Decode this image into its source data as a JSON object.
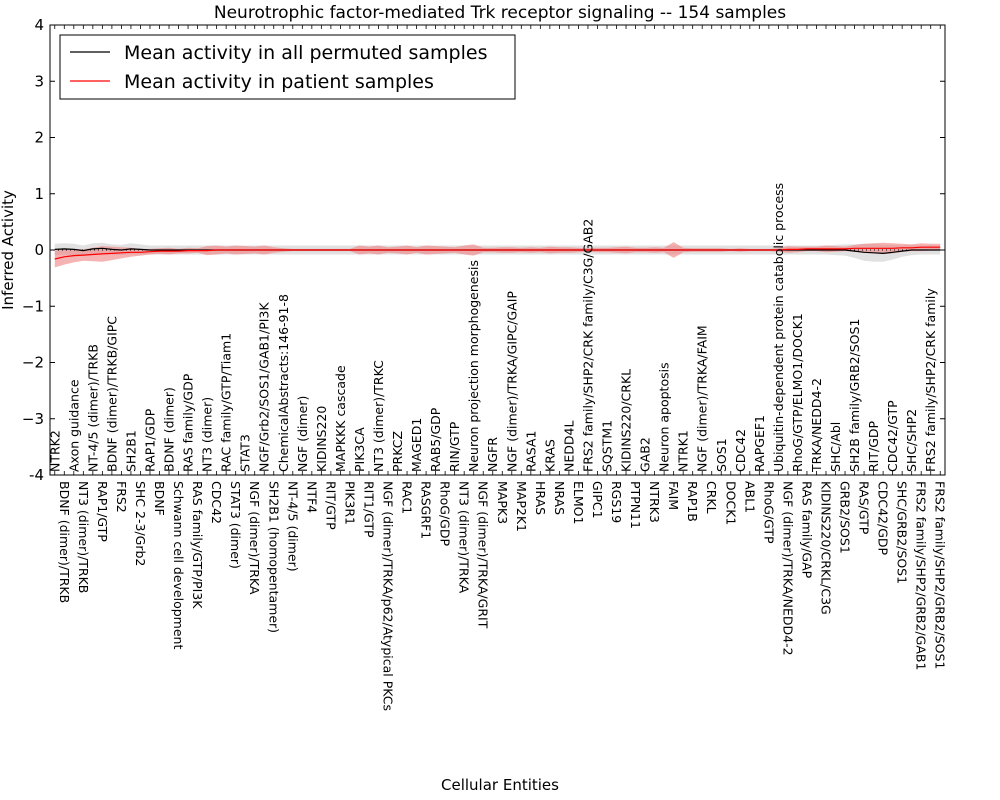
{
  "chart_data": {
    "type": "line",
    "title": "Neurotrophic factor-mediated Trk receptor signaling -- 154 samples",
    "xlabel": "Cellular Entities",
    "ylabel": "Inferred Activity",
    "ylim": [
      -4,
      4
    ],
    "yticks": [
      "-4",
      "−3",
      "−2",
      "−1",
      "0",
      "1",
      "2",
      "3",
      "4"
    ],
    "ytick_values": [
      -4,
      -3,
      -2,
      -1,
      0,
      1,
      2,
      3,
      4
    ],
    "legend_placement": "top-left",
    "grid": false,
    "categories": [
      "NTRK2",
      "BDNF (dimer)/TRKB",
      "Axon guidance",
      "NT3 (dimer)/TRKB",
      "NT-4/5 (dimer)/TRKB",
      "RAP1/GTP",
      "BDNF (dimer)/TRKB/GIPC",
      "FRS2",
      "SH2B1",
      "SHC 2-3/Grb2",
      "RAP1/GDP",
      "BDNF",
      "BDNF (dimer)",
      "Schwann cell development",
      "RAS family/GDP",
      "RAS family/GTP/PI3K",
      "NT3 (dimer)",
      "CDC42",
      "RAC family/GTP/Tiam1",
      "STAT3 (dimer)",
      "STAT3",
      "NGF (dimer)/TRKA",
      "NGF/Grb2/SOS1/GAB1/PI3K",
      "SH2B1 (homopentamer)",
      "ChemicalAbstracts:146-91-8",
      "NT-4/5 (dimer)",
      "NGF (dimer)",
      "NTF4",
      "KIDINS220",
      "RIT/GTP",
      "MAPKKK cascade",
      "PIK3R1",
      "PIK3CA",
      "RIT1/GTP",
      "NT3 (dimer)/TRKC",
      "NGF (dimer)/TRKA/p62/Atypical PKCs",
      "PRKCZ",
      "RAC1",
      "MAGED1",
      "RASGRF1",
      "RAB5/GDP",
      "RhoG/GDP",
      "RIN/GTP",
      "NT3 (dimer)/TRKA",
      "Neuron projection morphogenesis",
      "NGF (dimer)/TRKA/GRIT",
      "NGFR",
      "MAPK3",
      "NGF (dimer)/TRKA/GIPC/GAIP",
      "MAP2K1",
      "RASA1",
      "HRAS",
      "KRAS",
      "NRAS",
      "NEDD4L",
      "ELMO1",
      "FRS2 family/SHP2/CRK family/C3G/GAB2",
      "GIPC1",
      "SQSTM1",
      "RGS19",
      "KIDINS220/CRKL",
      "PTPN11",
      "GAB2",
      "NTRK3",
      "Neuron apoptosis",
      "FAIM",
      "NTRK1",
      "RAP1B",
      "NGF (dimer)/TRKA/FAIM",
      "CRKL",
      "SOS1",
      "DOCK1",
      "CDC42",
      "ABL1",
      "RAPGEF1",
      "RhoG/GTP",
      "Ubiquitin-dependent protein catabolic process",
      "NGF (dimer)/TRKA/NEDD4-2",
      "RhoG/GTP/ELMO1/DOCK1",
      "RAS family/GAP",
      "TRKA/NEDD4-2",
      "KIDINS220/CRKL/C3G",
      "SHC/Abl",
      "GRB2/SOS1",
      "SH2B family/GRB2/SOS1",
      "RAS/GTP",
      "RIT/GDP",
      "CDC42/GDP",
      "CDC42/GTP",
      "SHC/GRB2/SOS1",
      "SHC/SHP2",
      "FRS2 family/SHP2/GRB2/GAB1",
      "FRS2 family/SHP2/CRK family",
      "FRS2 family/SHP2/GRB2/SOS1"
    ],
    "series": [
      {
        "name": "Mean activity in all permuted samples",
        "color": "#000000",
        "band_color": "#c8c8c8",
        "values": [
          0.01,
          0.02,
          0.01,
          -0.01,
          0.02,
          0.03,
          0.01,
          0,
          0.02,
          0.01,
          0,
          0,
          0,
          0,
          0,
          0,
          0,
          0,
          0,
          0,
          0,
          0,
          0,
          0,
          0,
          0,
          0,
          0,
          0,
          0,
          0,
          0,
          0,
          0,
          0,
          0,
          0,
          0,
          0,
          0,
          0,
          0,
          0,
          0,
          0,
          0,
          0,
          0,
          0,
          0,
          0,
          0,
          0,
          0,
          0,
          0,
          0,
          0,
          0,
          0,
          0,
          0,
          0,
          0,
          0,
          0,
          0,
          0,
          0,
          0,
          0,
          0,
          0,
          0,
          0,
          0,
          0,
          0,
          0,
          0,
          0,
          0,
          0,
          0,
          -0.02,
          -0.04,
          -0.05,
          -0.06,
          -0.04,
          -0.02,
          0,
          0,
          0,
          0
        ],
        "band": [
          0.1,
          0.1,
          0.1,
          0.09,
          0.1,
          0.1,
          0.09,
          0.09,
          0.1,
          0.09,
          0.08,
          0.08,
          0.08,
          0.08,
          0.08,
          0.08,
          0.08,
          0.08,
          0.08,
          0.08,
          0.08,
          0.08,
          0.08,
          0.08,
          0.08,
          0.08,
          0.08,
          0.08,
          0.08,
          0.08,
          0.08,
          0.08,
          0.08,
          0.08,
          0.08,
          0.08,
          0.08,
          0.08,
          0.08,
          0.08,
          0.08,
          0.08,
          0.08,
          0.08,
          0.08,
          0.08,
          0.08,
          0.08,
          0.08,
          0.08,
          0.08,
          0.08,
          0.08,
          0.08,
          0.08,
          0.08,
          0.08,
          0.08,
          0.08,
          0.08,
          0.08,
          0.08,
          0.08,
          0.08,
          0.08,
          0.08,
          0.08,
          0.08,
          0.08,
          0.08,
          0.08,
          0.08,
          0.08,
          0.08,
          0.08,
          0.08,
          0.08,
          0.08,
          0.08,
          0.08,
          0.08,
          0.08,
          0.09,
          0.1,
          0.12,
          0.15,
          0.16,
          0.15,
          0.13,
          0.1,
          0.09,
          0.08,
          0.08,
          0.08
        ]
      },
      {
        "name": "Mean activity in patient samples",
        "color": "#ff0000",
        "band_color": "#f08080",
        "values": [
          -0.16,
          -0.12,
          -0.1,
          -0.09,
          -0.08,
          -0.07,
          -0.06,
          -0.05,
          -0.04,
          -0.04,
          -0.03,
          -0.02,
          -0.02,
          -0.02,
          -0.01,
          -0.01,
          -0.01,
          0,
          0,
          0,
          0,
          0,
          0,
          0,
          0,
          0,
          0,
          0,
          0,
          0,
          0,
          0,
          0,
          0,
          0,
          0,
          0,
          0,
          0,
          0,
          0,
          0,
          0,
          0,
          0,
          0,
          0,
          0,
          0,
          0,
          0,
          0,
          0,
          0,
          0,
          0,
          0,
          0,
          0,
          0,
          0,
          0,
          0,
          0,
          0,
          0,
          0,
          0,
          0,
          0,
          0,
          0,
          0,
          0,
          0,
          0,
          0,
          0.01,
          0.01,
          0.02,
          0.02,
          0.02,
          0.02,
          0.02,
          0.03,
          0.03,
          0.03,
          0.03,
          0.03,
          0.04,
          0.04,
          0.05,
          0.05,
          0.05
        ],
        "band": [
          0.15,
          0.14,
          0.12,
          0.1,
          0.12,
          0.14,
          0.12,
          0.1,
          0.08,
          0.06,
          0.05,
          0.05,
          0.06,
          0.04,
          0.05,
          0.04,
          0.08,
          0.08,
          0.06,
          0.08,
          0.07,
          0.06,
          0.08,
          0.05,
          0.03,
          0.02,
          0.02,
          0.02,
          0.02,
          0.02,
          0.02,
          0.02,
          0.08,
          0.06,
          0.08,
          0.05,
          0.06,
          0.08,
          0.05,
          0.08,
          0.07,
          0.06,
          0.05,
          0.08,
          0.1,
          0.04,
          0.04,
          0.05,
          0.05,
          0.04,
          0.05,
          0.04,
          0.06,
          0.05,
          0.05,
          0.04,
          0.03,
          0.04,
          0.04,
          0.05,
          0.06,
          0.04,
          0.04,
          0.05,
          0.04,
          0.14,
          0.04,
          0.03,
          0.03,
          0.03,
          0.03,
          0.02,
          0.03,
          0.02,
          0.02,
          0.02,
          0.03,
          0.06,
          0.05,
          0.04,
          0.04,
          0.06,
          0.05,
          0.04,
          0.06,
          0.08,
          0.09,
          0.1,
          0.09,
          0.07,
          0.06,
          0.07,
          0.06,
          0.06
        ]
      }
    ]
  }
}
